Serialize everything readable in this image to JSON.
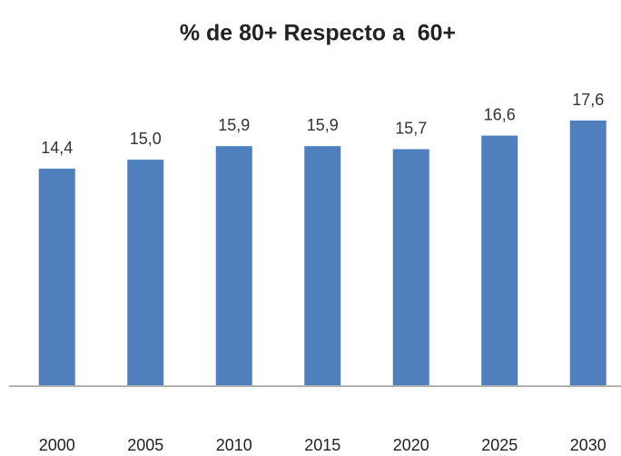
{
  "chart_data": {
    "type": "bar",
    "title": "% de 80+ Respecto a  60+",
    "categories": [
      "2000",
      "2005",
      "2010",
      "2015",
      "2020",
      "2025",
      "2030"
    ],
    "values": [
      14.4,
      15.0,
      15.9,
      15.9,
      15.7,
      16.6,
      17.6
    ],
    "value_labels": [
      "14,4",
      "15,0",
      "15,9",
      "15,9",
      "15,7",
      "16,6",
      "17,6"
    ],
    "color": "#4f7fbd"
  }
}
